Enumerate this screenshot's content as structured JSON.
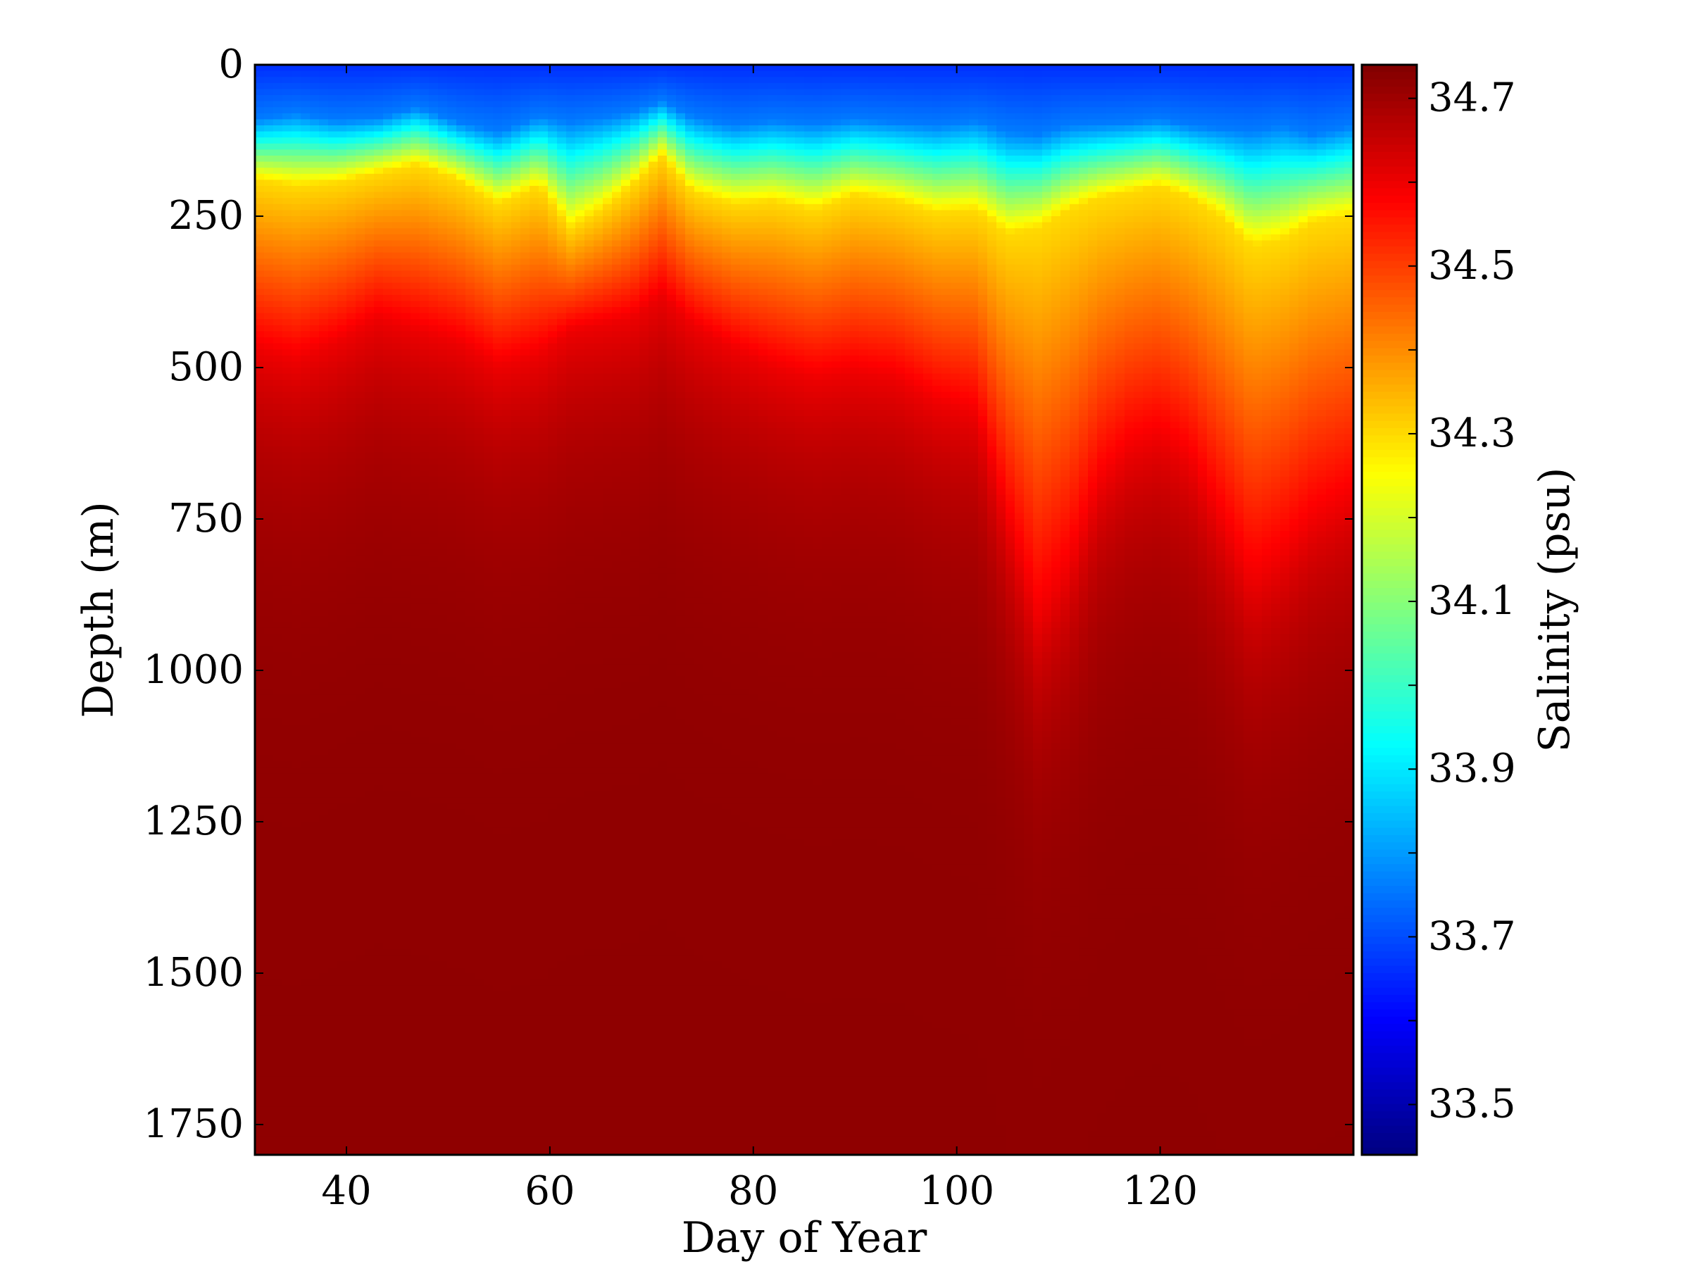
{
  "chart_data": {
    "type": "heatmap",
    "title": "",
    "xlabel": "Day of Year",
    "ylabel": "Depth (m)",
    "colorbar_label": "Salinity (psu)",
    "xlim": [
      31,
      139
    ],
    "ylim": [
      1800,
      0
    ],
    "y_inverted": true,
    "xticks": [
      40,
      60,
      80,
      100,
      120
    ],
    "yticks": [
      0,
      250,
      500,
      750,
      1000,
      1250,
      1500,
      1750
    ],
    "clim": [
      33.44,
      34.74
    ],
    "cbar_ticks": [
      33.5,
      33.7,
      33.9,
      34.1,
      34.3,
      34.5,
      34.7
    ],
    "colormap": "jet",
    "grid": false,
    "profile_days": [
      31,
      35,
      39,
      43,
      47,
      51,
      55,
      59,
      62,
      65,
      68,
      71,
      74,
      78,
      82,
      86,
      90,
      94,
      98,
      102,
      105,
      108,
      111,
      114,
      117,
      120,
      123,
      126,
      129,
      132,
      135,
      139
    ],
    "surface_layer_bottom_depth_m": [
      90,
      80,
      92,
      88,
      70,
      95,
      110,
      85,
      95,
      88,
      78,
      60,
      85,
      100,
      92,
      98,
      90,
      95,
      100,
      92,
      110,
      115,
      100,
      98,
      95,
      90,
      100,
      105,
      110,
      100,
      115,
      100
    ],
    "isohaline_34_3_depth_m": [
      190,
      200,
      195,
      180,
      165,
      190,
      230,
      200,
      270,
      240,
      200,
      150,
      210,
      230,
      225,
      240,
      215,
      225,
      245,
      240,
      280,
      270,
      240,
      220,
      210,
      200,
      220,
      250,
      300,
      290,
      260,
      250
    ],
    "isohaline_34_6_depth_m": [
      470,
      490,
      460,
      420,
      440,
      460,
      500,
      480,
      440,
      430,
      420,
      380,
      430,
      470,
      500,
      520,
      510,
      520,
      560,
      580,
      760,
      920,
      840,
      700,
      640,
      620,
      660,
      760,
      860,
      820,
      760,
      720
    ],
    "deep_salinity_psu": 34.72
  }
}
